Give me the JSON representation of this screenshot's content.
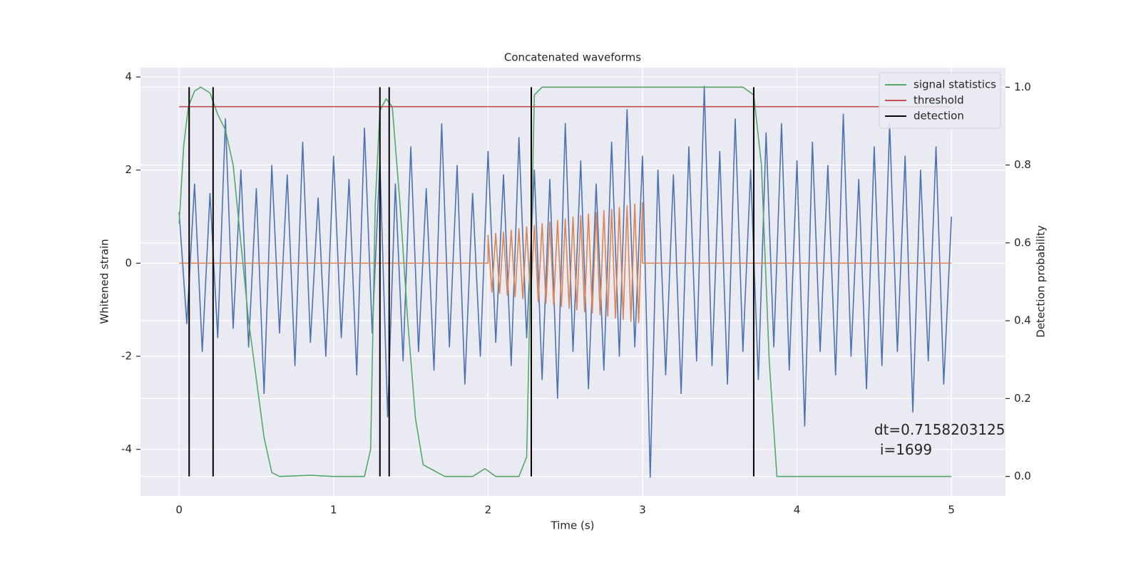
{
  "chart_data": {
    "type": "line",
    "title": "Concatenated waveforms",
    "xlabel": "Time (s)",
    "ylabel": "Whitened strain",
    "y2label": "Detection probability",
    "xlim": [
      -0.25,
      5.35
    ],
    "ylim": [
      -5,
      4.2
    ],
    "y2lim": [
      -0.05,
      1.05
    ],
    "xticks": [
      0,
      1,
      2,
      3,
      4,
      5
    ],
    "yticks": [
      -4,
      -2,
      0,
      2,
      4
    ],
    "y2ticks": [
      {
        "value": 0,
        "label": "0.0"
      },
      {
        "value": 0.2,
        "label": "0.2"
      },
      {
        "value": 0.4,
        "label": "0.4"
      },
      {
        "value": 0.6,
        "label": "0.6"
      },
      {
        "value": 0.8,
        "label": "0.8"
      },
      {
        "value": 1,
        "label": "1.0"
      }
    ],
    "grid": true,
    "legend": "upper right",
    "series": [
      {
        "color": "#4c72b0",
        "x": [
          0,
          0.05,
          0.1,
          0.15,
          0.2,
          0.25,
          0.3,
          0.35,
          0.4,
          0.45,
          0.5,
          0.55,
          0.6,
          0.65,
          0.7,
          0.75,
          0.8,
          0.85,
          0.9,
          0.95,
          1,
          1.05,
          1.1,
          1.15,
          1.2,
          1.25,
          1.3,
          1.35,
          1.4,
          1.45,
          1.5,
          1.55,
          1.6,
          1.65,
          1.7,
          1.75,
          1.8,
          1.85,
          1.9,
          1.95,
          2,
          2.05,
          2.1,
          2.15,
          2.2,
          2.25,
          2.3,
          2.35,
          2.4,
          2.45,
          2.5,
          2.55,
          2.6,
          2.65,
          2.7,
          2.75,
          2.8,
          2.85,
          2.9,
          2.95,
          3,
          3.05,
          3.1,
          3.15,
          3.2,
          3.25,
          3.3,
          3.35,
          3.4,
          3.45,
          3.5,
          3.55,
          3.6,
          3.65,
          3.7,
          3.75,
          3.8,
          3.85,
          3.9,
          3.95,
          4,
          4.05,
          4.1,
          4.15,
          4.2,
          4.25,
          4.3,
          4.35,
          4.4,
          4.45,
          4.5,
          4.55,
          4.6,
          4.65,
          4.7,
          4.75,
          4.8,
          4.85,
          4.9,
          4.95,
          5
        ],
        "values": [
          1.1,
          -1.3,
          1.7,
          -1.9,
          1.5,
          -1.6,
          3.1,
          -1.4,
          2.0,
          -1.8,
          1.6,
          -2.8,
          2.1,
          -1.5,
          1.9,
          -2.2,
          2.6,
          -1.7,
          1.4,
          -2.0,
          2.3,
          -1.6,
          1.8,
          -2.4,
          2.9,
          -1.5,
          2.2,
          -3.3,
          1.7,
          -2.1,
          2.5,
          -1.9,
          1.6,
          -2.3,
          3.0,
          -1.8,
          2.1,
          -2.6,
          1.5,
          -2.0,
          2.4,
          -1.7,
          1.9,
          -2.2,
          2.7,
          -1.6,
          2.0,
          -2.5,
          1.8,
          -2.9,
          3.0,
          -1.9,
          2.2,
          -2.7,
          1.7,
          -2.3,
          2.6,
          -2.0,
          3.3,
          -1.8,
          2.3,
          -4.6,
          2.0,
          -2.4,
          1.9,
          -2.8,
          2.5,
          -2.1,
          3.8,
          -2.2,
          2.4,
          -2.6,
          3.1,
          -1.9,
          2.0,
          -2.5,
          2.8,
          -1.8,
          3.0,
          -2.3,
          2.2,
          -3.5,
          2.6,
          -1.9,
          2.1,
          -2.4,
          3.2,
          -2.0,
          1.8,
          -2.7,
          2.5,
          -2.2,
          3.0,
          -1.9,
          2.3,
          -3.2,
          2.0,
          -2.1,
          2.5,
          -2.6,
          1.0
        ]
      },
      {
        "color": "#dd8452",
        "x": [
          0,
          2,
          2,
          2.025,
          2.05,
          2.075,
          2.1,
          2.125,
          2.15,
          2.175,
          2.2,
          2.225,
          2.25,
          2.275,
          2.3,
          2.325,
          2.35,
          2.375,
          2.4,
          2.425,
          2.45,
          2.475,
          2.5,
          2.525,
          2.55,
          2.575,
          2.6,
          2.625,
          2.65,
          2.675,
          2.7,
          2.725,
          2.75,
          2.775,
          2.8,
          2.825,
          2.85,
          2.875,
          2.9,
          2.925,
          2.95,
          2.975,
          3,
          3,
          5
        ],
        "values": [
          0,
          0,
          0.6,
          -0.62,
          0.64,
          -0.65,
          0.67,
          -0.69,
          0.71,
          -0.72,
          0.74,
          -0.76,
          0.78,
          -0.79,
          0.81,
          -0.83,
          0.85,
          -0.86,
          0.88,
          -0.9,
          0.92,
          -0.93,
          0.95,
          -0.97,
          0.99,
          -1.0,
          1.02,
          -1.04,
          1.06,
          -1.07,
          1.09,
          -1.11,
          1.13,
          -1.14,
          1.16,
          -1.18,
          1.2,
          -1.21,
          1.23,
          -1.25,
          1.27,
          -1.28,
          1.3,
          0,
          0
        ]
      },
      {
        "name": "signal statistics",
        "color": "#55a868",
        "axis": "y2",
        "x": [
          0,
          0.03,
          0.06,
          0.1,
          0.14,
          0.2,
          0.25,
          0.3,
          0.35,
          0.4,
          0.45,
          0.5,
          0.55,
          0.6,
          0.65,
          0.85,
          1.0,
          1.2,
          1.24,
          1.27,
          1.3,
          1.34,
          1.38,
          1.43,
          1.48,
          1.53,
          1.58,
          1.65,
          1.72,
          1.9,
          1.98,
          2.05,
          2.2,
          2.25,
          2.3,
          2.35,
          3.65,
          3.72,
          3.77,
          3.82,
          3.87,
          5.0
        ],
        "values": [
          0.65,
          0.85,
          0.95,
          0.99,
          1.0,
          0.985,
          0.93,
          0.89,
          0.8,
          0.6,
          0.4,
          0.25,
          0.1,
          0.01,
          0,
          0.003,
          0,
          0,
          0.07,
          0.7,
          0.94,
          0.97,
          0.95,
          0.7,
          0.4,
          0.15,
          0.03,
          0.015,
          0,
          0,
          0.02,
          0,
          0,
          0.05,
          0.98,
          1.0,
          1.0,
          0.98,
          0.8,
          0.3,
          0,
          0
        ]
      },
      {
        "name": "threshold",
        "color": "#c44e52",
        "axis": "y2",
        "x": [
          0,
          5
        ],
        "values": [
          0.95,
          0.95
        ]
      },
      {
        "name": "detection",
        "color": "#000000",
        "axis": "y2",
        "type": "vlines",
        "x": [
          0.065,
          0.22,
          1.3,
          1.36,
          2.28,
          3.72
        ],
        "ymin": 0,
        "ymax": 1
      }
    ],
    "annotation": {
      "text": [
        "dt=0.7158203125",
        "i=1699"
      ],
      "x": 4.5,
      "y": -3.6
    }
  }
}
